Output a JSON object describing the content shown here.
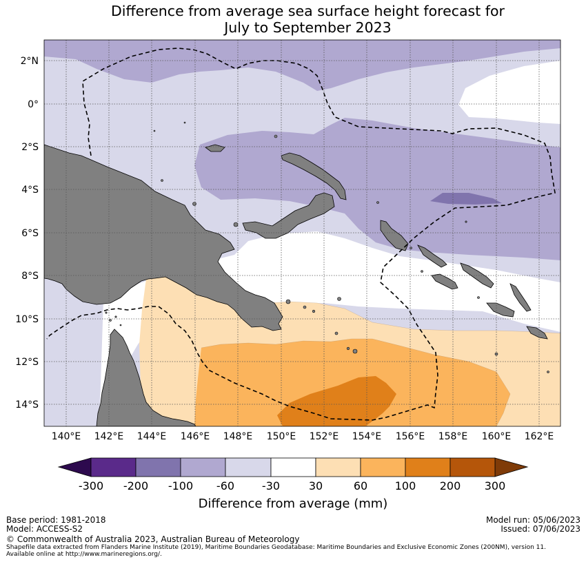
{
  "title": {
    "line1": "Difference from average sea surface height forecast for",
    "line2": "July to September 2023"
  },
  "map": {
    "lat_labels": [
      "2°N",
      "0°",
      "2°S",
      "4°S",
      "6°S",
      "8°S",
      "10°S",
      "12°S",
      "14°S"
    ],
    "lon_labels": [
      "140°E",
      "142°E",
      "144°E",
      "146°E",
      "148°E",
      "150°E",
      "152°E",
      "154°E",
      "156°E",
      "158°E",
      "160°E",
      "162°E"
    ],
    "colors": {
      "land": "#808080",
      "class_-200_-100": "#8074ad",
      "class_-100_-60": "#b0a8d0",
      "class_-60_-30": "#d8d8ea",
      "class_-30_30": "#ffffff",
      "class_30_60": "#fddfb4",
      "class_60_100": "#fbb45c",
      "class_100_200": "#e0801a"
    }
  },
  "colorbar": {
    "labels": [
      "-300",
      "-200",
      "-100",
      "-60",
      "-30",
      "30",
      "60",
      "100",
      "200",
      "300"
    ],
    "colors": [
      "#5a2a8a",
      "#8074ad",
      "#b0a8d0",
      "#d8d8ea",
      "#ffffff",
      "#fddfb4",
      "#fbb45c",
      "#e0801a",
      "#b5560a"
    ],
    "under_color": "#2d0a4e",
    "over_color": "#7f3b08",
    "title": "Difference from average (mm)"
  },
  "footer": {
    "base_period": "Base period: 1981-2018",
    "model": "Model: ACCESS-S2",
    "model_run": "Model run: 05/06/2023",
    "issued": "Issued: 07/06/2023",
    "copyright": "© Commonwealth of Australia 2023, Australian Bureau of Meteorology",
    "shapefile_line1": "Shapefile data extracted from Flanders Marine Institute (2019), Maritime Boundaries Geodatabase: Maritime Boundaries and Exclusive Economic Zones (200NM), version 11.",
    "shapefile_line2": "Available online at http://www.marineregions.org/."
  }
}
